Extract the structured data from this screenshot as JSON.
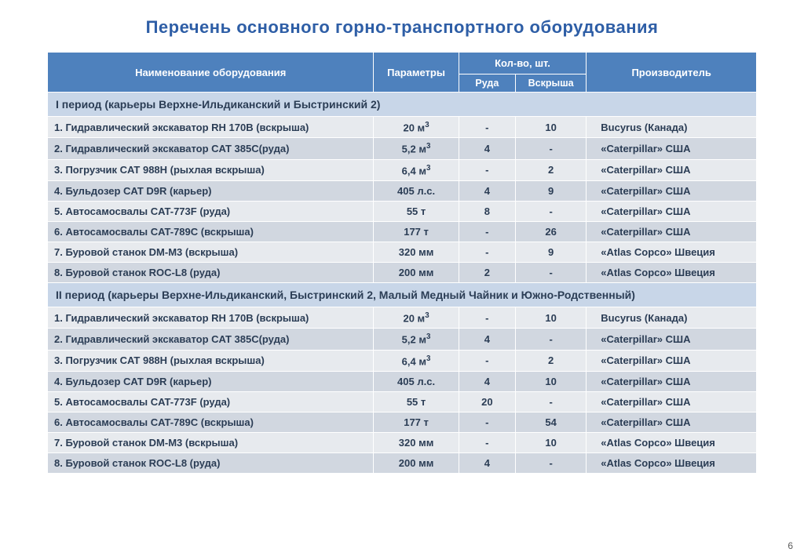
{
  "page_number": "6",
  "title": "Перечень основного горно-транспортного оборудования",
  "styling": {
    "title_color": "#2e5ea6",
    "header_bg": "#4e81bd",
    "header_fg": "#ffffff",
    "section_bg": "#c8d6e8",
    "row_even_bg": "#e7eaee",
    "row_odd_bg": "#d1d7e0",
    "text_color": "#2b3d55",
    "font_family": "Segoe UI / Arial",
    "title_fontsize_pt": 17,
    "body_fontsize_pt": 10,
    "col_widths_pct": [
      46,
      12,
      8,
      10,
      24
    ]
  },
  "table": {
    "headers": {
      "name": "Наименование оборудования",
      "params": "Параметры",
      "qty_group": "Кол-во, шт.",
      "qty_ore": "Руда",
      "qty_over": "Вскрыша",
      "maker": "Производитель"
    },
    "sections": [
      {
        "title": "I период (карьеры Верхне-Ильдиканский и Быстринский 2)",
        "rows": [
          {
            "name": "1. Гидравлический экскаватор RH 170B (вскрыша)",
            "param_html": "20 м<sup>3</sup>",
            "ore": "-",
            "over": "10",
            "maker": "Bucyrus (Канада)"
          },
          {
            "name": "2. Гидравлический экскаватор CAT 385С(руда)",
            "param_html": "5,2 м<sup>3</sup>",
            "ore": "4",
            "over": "-",
            "maker": "«Caterpillar» США"
          },
          {
            "name": "3. Погрузчик CAT 988H (рыхлая вскрыша)",
            "param_html": "6,4 м<sup>3</sup>",
            "ore": "-",
            "over": "2",
            "maker": "«Caterpillar» США"
          },
          {
            "name": "4. Бульдозер CAT D9R (карьер)",
            "param_html": "405 л.с.",
            "ore": "4",
            "over": "9",
            "maker": "«Caterpillar» США"
          },
          {
            "name": "5. Автосамосвалы CAT-773F  (руда)",
            "param_html": "55 т",
            "ore": "8",
            "over": "-",
            "maker": "«Caterpillar» США"
          },
          {
            "name": "6. Автосамосвалы CAT-789С  (вскрыша)",
            "param_html": "177 т",
            "ore": "-",
            "over": "26",
            "maker": "«Caterpillar» США"
          },
          {
            "name": "7. Буровой станок DM-M3  (вскрыша)",
            "param_html": "320 мм",
            "ore": "-",
            "over": "9",
            "maker": "«Atlas Copco» Швеция"
          },
          {
            "name": "8. Буровой станок ROC-L8  (руда)",
            "param_html": "200 мм",
            "ore": "2",
            "over": "-",
            "maker": "«Atlas Copco» Швеция"
          }
        ]
      },
      {
        "title": "II период (карьеры Верхне-Ильдиканский, Быстринский 2, Малый Медный Чайник и Южно-Родственный)",
        "rows": [
          {
            "name": "1. Гидравлический экскаватор RH 170B (вскрыша)",
            "param_html": "20 м<sup>3</sup>",
            "ore": "-",
            "over": "10",
            "maker": "Bucyrus (Канада)"
          },
          {
            "name": "2. Гидравлический экскаватор CAT 385С(руда)",
            "param_html": "5,2 м<sup>3</sup>",
            "ore": "4",
            "over": "-",
            "maker": "«Caterpillar» США"
          },
          {
            "name": "3. Погрузчик CAT 988H (рыхлая вскрыша)",
            "param_html": "6,4 м<sup>3</sup>",
            "ore": "-",
            "over": "2",
            "maker": "«Caterpillar» США"
          },
          {
            "name": "4. Бульдозер CAT D9R (карьер)",
            "param_html": "405 л.с.",
            "ore": "4",
            "over": "10",
            "maker": "«Caterpillar» США"
          },
          {
            "name": "5. Автосамосвалы CAT-773F  (руда)",
            "param_html": "55 т",
            "ore": "20",
            "over": "-",
            "maker": "«Caterpillar» США"
          },
          {
            "name": "6. Автосамосвалы CAT-789С  (вскрыша)",
            "param_html": "177 т",
            "ore": "-",
            "over": "54",
            "maker": "«Caterpillar» США"
          },
          {
            "name": "7. Буровой станок DM-M3  (вскрыша)",
            "param_html": "320 мм",
            "ore": "-",
            "over": "10",
            "maker": "«Atlas Copco» Швеция"
          },
          {
            "name": "8. Буровой станок ROC-L8  (руда)",
            "param_html": "200 мм",
            "ore": "4",
            "over": "-",
            "maker": "«Atlas Copco» Швеция"
          }
        ]
      }
    ]
  }
}
